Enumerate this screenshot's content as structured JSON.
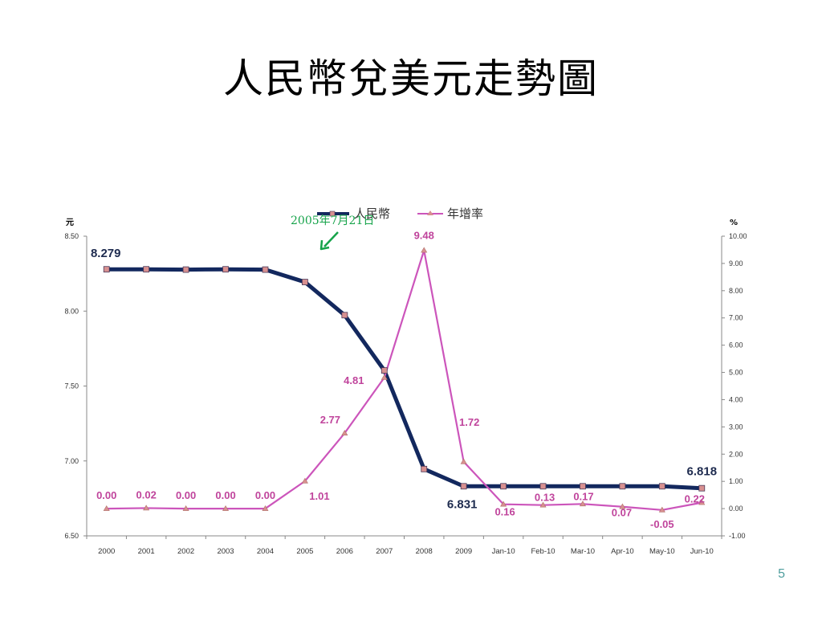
{
  "slide": {
    "title": "人民幣兌美元走勢圖",
    "page_number": "5"
  },
  "colors": {
    "rmb_line": "#13285e",
    "rate_line": "#cc55bb",
    "marker": "#d89090",
    "rate_label": "#c0449c",
    "rmb_label": "#1e2b4f",
    "annotation": "#16a34a",
    "axis": "#888888"
  },
  "chart_data": {
    "type": "line",
    "title": "",
    "categories": [
      "2000",
      "2001",
      "2002",
      "2003",
      "2004",
      "2005",
      "2006",
      "2007",
      "2008",
      "2009",
      "Jan-10",
      "Feb-10",
      "Mar-10",
      "Apr-10",
      "May-10",
      "Jun-10"
    ],
    "series": [
      {
        "name": "人民幣",
        "axis": "left",
        "values": [
          8.279,
          8.279,
          8.277,
          8.279,
          8.277,
          8.194,
          7.973,
          7.604,
          6.946,
          6.831,
          6.831,
          6.831,
          6.831,
          6.831,
          6.831,
          6.818
        ]
      },
      {
        "name": "年增率",
        "axis": "right",
        "values": [
          0.0,
          0.02,
          0.0,
          0.0,
          0.0,
          1.01,
          2.77,
          4.81,
          9.48,
          1.72,
          0.16,
          0.13,
          0.17,
          0.07,
          -0.05,
          0.22
        ]
      }
    ],
    "y_left": {
      "unit": "元",
      "ylim": [
        6.5,
        8.5
      ],
      "ticks": [
        "8.50",
        "8.00",
        "7.50",
        "7.00",
        "6.50"
      ]
    },
    "y_right": {
      "unit": "%",
      "ylim": [
        -1.0,
        10.0
      ],
      "ticks": [
        "10.00",
        "9.00",
        "8.00",
        "7.00",
        "6.00",
        "5.00",
        "4.00",
        "3.00",
        "2.00",
        "1.00",
        "0.00",
        "-1.00"
      ]
    },
    "data_labels": {
      "rate": [
        "0.00",
        "0.02",
        "0.00",
        "0.00",
        "0.00",
        "1.01",
        "2.77",
        "4.81",
        "9.48",
        "1.72",
        "0.16",
        "0.13",
        "0.17",
        "0.07",
        "-0.05",
        "0.22"
      ],
      "rmb": [
        {
          "index": 0,
          "text": "8.279"
        },
        {
          "index": 9,
          "text": "6.831"
        },
        {
          "index": 15,
          "text": "6.818"
        }
      ]
    },
    "annotation": {
      "text": "2005年7月21日",
      "category_index": 5
    },
    "legend": {
      "position": "top",
      "items": [
        "人民幣",
        "年增率"
      ]
    },
    "grid": false
  }
}
